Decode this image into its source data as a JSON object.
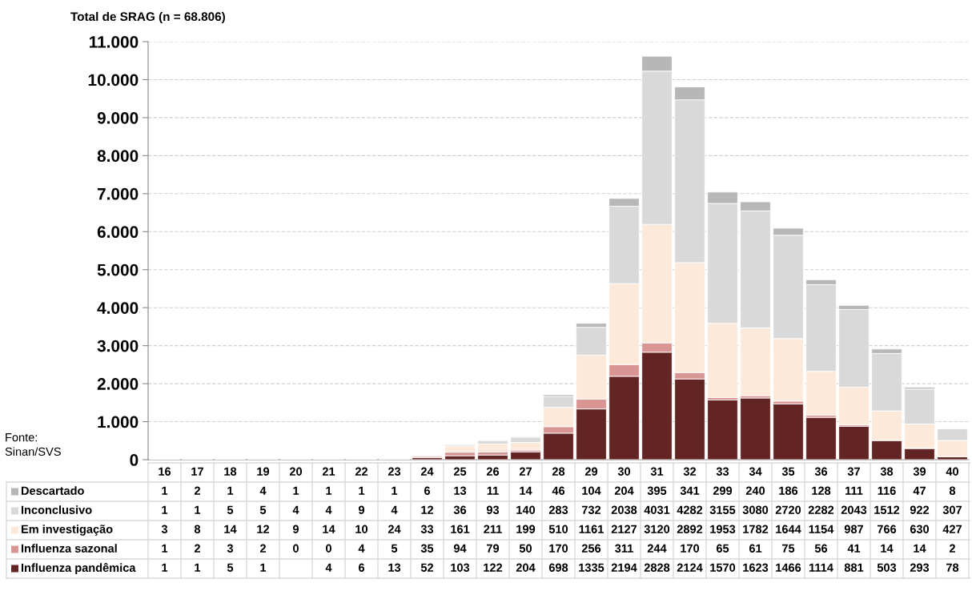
{
  "chart_data": {
    "type": "bar",
    "stacked": true,
    "ylabel": "Total de SRAG (n = 68.806)",
    "categories": [
      "16",
      "17",
      "18",
      "19",
      "20",
      "21",
      "22",
      "23",
      "24",
      "25",
      "26",
      "27",
      "28",
      "29",
      "30",
      "31",
      "32",
      "33",
      "34",
      "35",
      "36",
      "37",
      "38",
      "39",
      "40"
    ],
    "series": [
      {
        "name": "Influenza pandêmica",
        "color": "#632523",
        "values": [
          1,
          1,
          5,
          1,
          null,
          4,
          6,
          13,
          52,
          103,
          122,
          204,
          698,
          1335,
          2194,
          2828,
          2124,
          1570,
          1623,
          1466,
          1114,
          881,
          503,
          293,
          78
        ]
      },
      {
        "name": "Influenza sazonal",
        "color": "#d99594",
        "values": [
          1,
          2,
          3,
          2,
          0,
          0,
          4,
          5,
          35,
          94,
          79,
          50,
          170,
          256,
          311,
          244,
          170,
          65,
          61,
          75,
          56,
          41,
          14,
          14,
          2
        ]
      },
      {
        "name": "Em investigação",
        "color": "#fde9d9",
        "values": [
          3,
          8,
          14,
          12,
          9,
          14,
          10,
          24,
          33,
          161,
          211,
          199,
          510,
          1161,
          2127,
          3120,
          2892,
          1953,
          1782,
          1644,
          1154,
          987,
          766,
          630,
          427
        ]
      },
      {
        "name": "Inconclusivo",
        "color": "#d9d9d9",
        "values": [
          1,
          1,
          5,
          5,
          4,
          4,
          9,
          4,
          12,
          36,
          93,
          140,
          283,
          732,
          2038,
          4031,
          4282,
          3155,
          3080,
          2720,
          2282,
          2043,
          1512,
          922,
          307
        ]
      },
      {
        "name": "Descartado",
        "color": "#b7b7b7",
        "values": [
          1,
          2,
          1,
          4,
          1,
          1,
          1,
          1,
          6,
          13,
          11,
          14,
          46,
          104,
          204,
          395,
          341,
          299,
          240,
          186,
          128,
          111,
          116,
          47,
          8
        ]
      }
    ],
    "ylim": [
      0,
      11000
    ],
    "yticks": [
      0,
      {
        "value": 1000,
        "label": "1.000"
      },
      {
        "value": 2000,
        "label": "2.000"
      },
      {
        "value": 3000,
        "label": "3.000"
      },
      {
        "value": 4000,
        "label": "4.000"
      },
      {
        "value": 5000,
        "label": "5.000"
      },
      {
        "value": 6000,
        "label": "6.000"
      },
      {
        "value": 7000,
        "label": "7.000"
      },
      {
        "value": 8000,
        "label": "8.000"
      },
      {
        "value": 9000,
        "label": "9.000"
      },
      {
        "value": 10000,
        "label": "10.000"
      },
      {
        "value": 11000,
        "label": "11.000"
      }
    ],
    "grid": "y",
    "legend": "bottom",
    "data_labels": true,
    "annotations": [
      "Fonte:\nSinan/SVS"
    ]
  }
}
